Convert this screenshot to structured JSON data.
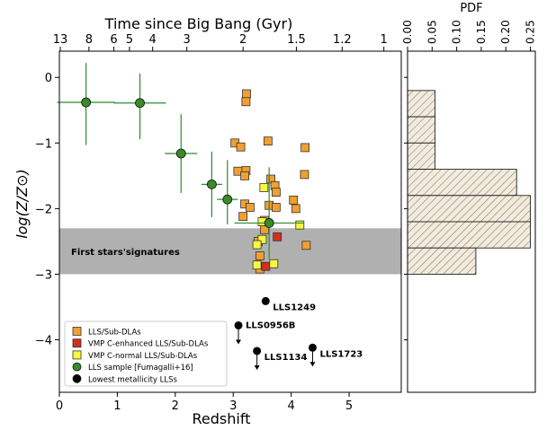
{
  "chart_data": [
    {
      "type": "scatter",
      "title": "",
      "xlabel": "Redshift",
      "ylabel": "log(Z/Z⊙)",
      "top_axis_label": "Time since Big Bang (Gyr)",
      "xlim": [
        0,
        5.9
      ],
      "ylim": [
        -4.8,
        0.4
      ],
      "x_ticks": [
        0,
        1,
        2,
        3,
        4,
        5
      ],
      "y_ticks": [
        0,
        -1,
        -2,
        -3,
        -4
      ],
      "y_tick_labels": [
        "0",
        "−1",
        "−2",
        "−3",
        "−4"
      ],
      "top_ticks": [
        {
          "label": "13",
          "z": 0.016
        },
        {
          "label": "8",
          "z": 0.51
        },
        {
          "label": "6",
          "z": 0.94
        },
        {
          "label": "5",
          "z": 1.21
        },
        {
          "label": "4",
          "z": 1.61
        },
        {
          "label": "3",
          "z": 2.2
        },
        {
          "label": "2",
          "z": 3.17
        },
        {
          "label": "1.5",
          "z": 4.09
        },
        {
          "label": "1.2",
          "z": 4.88
        },
        {
          "label": "1",
          "z": 5.6
        }
      ],
      "grid": false,
      "legend_position": "lower-left",
      "band": {
        "label": "First stars'signatures",
        "y_from": -3.0,
        "y_to": -2.3,
        "color": "#b0b0b0"
      },
      "colors": {
        "lls_subdla": "#f0a030",
        "vmp_c_enhanced": "#d03020",
        "vmp_c_normal": "#f8f840",
        "fumagalli": "#3a8a2a",
        "lowest": "#000000",
        "error_bar": "#2e8b2e"
      },
      "series": [
        {
          "name": "LLS/Sub-DLAs",
          "marker": "square",
          "points": [
            [
              3.23,
              -0.25
            ],
            [
              3.22,
              -0.37
            ],
            [
              3.03,
              -1.0
            ],
            [
              3.13,
              -1.06
            ],
            [
              3.08,
              -1.43
            ],
            [
              3.22,
              -1.42
            ],
            [
              3.2,
              -1.5
            ],
            [
              3.6,
              -0.97
            ],
            [
              4.24,
              -1.07
            ],
            [
              4.23,
              -1.48
            ],
            [
              3.65,
              -1.55
            ],
            [
              3.72,
              -1.65
            ],
            [
              3.74,
              -1.75
            ],
            [
              3.2,
              -1.93
            ],
            [
              3.29,
              -1.98
            ],
            [
              3.17,
              -2.12
            ],
            [
              3.62,
              -1.95
            ],
            [
              3.74,
              -1.98
            ],
            [
              3.54,
              -2.18
            ],
            [
              4.04,
              -1.87
            ],
            [
              4.08,
              -2.0
            ],
            [
              3.54,
              -2.32
            ],
            [
              3.43,
              -2.5
            ],
            [
              4.26,
              -2.56
            ],
            [
              3.46,
              -2.72
            ],
            [
              3.46,
              -2.92
            ]
          ]
        },
        {
          "name": "VMP C-enhanced LLS/Sub-DLAs",
          "marker": "square",
          "points": [
            [
              3.76,
              -2.43
            ],
            [
              3.56,
              -2.88
            ]
          ]
        },
        {
          "name": "VMP C-normal LLS/Sub-DLAs",
          "marker": "square",
          "points": [
            [
              3.53,
              -1.68
            ],
            [
              3.5,
              -2.2
            ],
            [
              4.15,
              -2.25
            ],
            [
              3.5,
              -2.47
            ],
            [
              3.41,
              -2.55
            ],
            [
              3.7,
              -2.84
            ],
            [
              3.41,
              -2.86
            ]
          ]
        },
        {
          "name": "LLS sample [Fumagalli+16]",
          "marker": "circle",
          "points": [
            {
              "x": 0.46,
              "y": -0.38,
              "xerr": 0.5,
              "yerr_plus": 0.6,
              "yerr_minus": 0.65
            },
            {
              "x": 1.39,
              "y": -0.39,
              "xerr": 0.45,
              "yerr_plus": 0.45,
              "yerr_minus": 0.55
            },
            {
              "x": 2.1,
              "y": -1.16,
              "xerr": 0.28,
              "yerr_plus": 0.6,
              "yerr_minus": 0.6
            },
            {
              "x": 2.63,
              "y": -1.63,
              "xerr": 0.18,
              "yerr_plus": 0.5,
              "yerr_minus": 0.5
            },
            {
              "x": 2.9,
              "y": -1.86,
              "xerr": 0.18,
              "yerr_plus": 0.6,
              "yerr_minus": 0.38
            },
            {
              "x": 3.62,
              "y": -2.22,
              "xerr": 0.6,
              "yerr_plus": 0.85,
              "yerr_minus": 0.55
            }
          ]
        },
        {
          "name": "Lowest metallicity LLSs",
          "marker": "circle",
          "points": [
            {
              "x": 3.56,
              "y": -3.41,
              "label": "LLS1249",
              "upper_limit": false
            },
            {
              "x": 3.09,
              "y": -3.78,
              "label": "LLS0956B",
              "upper_limit": true
            },
            {
              "x": 3.41,
              "y": -4.17,
              "label": "LLS1134",
              "upper_limit": true
            },
            {
              "x": 4.37,
              "y": -4.12,
              "label": "LLS1723",
              "upper_limit": true
            }
          ]
        }
      ]
    },
    {
      "type": "bar",
      "orientation": "horizontal",
      "title": "PDF",
      "xlim": [
        0,
        0.26
      ],
      "x_ticks": [
        0.0,
        0.05,
        0.1,
        0.15,
        0.2,
        0.25
      ],
      "x_tick_labels": [
        "0.00",
        "0.05",
        "0.10",
        "0.15",
        "0.20",
        "0.25"
      ],
      "bins": [
        {
          "y_from": -0.2,
          "y_to": -0.6,
          "value": 0.056
        },
        {
          "y_from": -0.6,
          "y_to": -1.0,
          "value": 0.056
        },
        {
          "y_from": -1.0,
          "y_to": -1.4,
          "value": 0.056
        },
        {
          "y_from": -1.4,
          "y_to": -1.8,
          "value": 0.222
        },
        {
          "y_from": -1.8,
          "y_to": -2.2,
          "value": 0.25
        },
        {
          "y_from": -2.2,
          "y_to": -2.6,
          "value": 0.25
        },
        {
          "y_from": -2.6,
          "y_to": -3.0,
          "value": 0.139
        }
      ],
      "fill": "#f1ebdf",
      "hatch_color": "#8a6a4a"
    }
  ]
}
